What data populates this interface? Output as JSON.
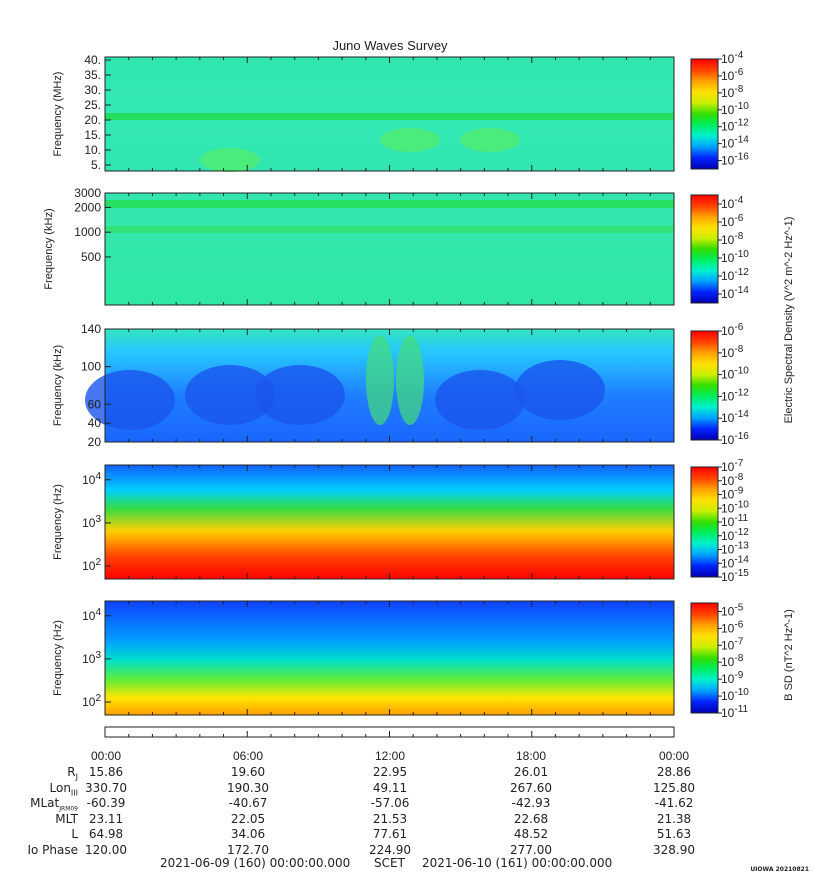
{
  "title": "Juno Waves Survey",
  "colors": {
    "spectrum": [
      "#0000b0",
      "#0022ff",
      "#00a0ff",
      "#00f0d0",
      "#00ee60",
      "#33dd00",
      "#ccee00",
      "#ffe000",
      "#ffa000",
      "#ff4000",
      "#ff0000"
    ]
  },
  "chart_data": [
    {
      "type": "heatmap",
      "ylabel": "Frequency (MHz)",
      "yticks": [
        "40.",
        "35.",
        "30.",
        "25.",
        "20.",
        "15.",
        "10.",
        "5."
      ],
      "ytick_values": [
        40,
        35,
        30,
        25,
        20,
        15,
        10,
        5
      ],
      "ylim": [
        3,
        41
      ],
      "scale": "linear",
      "colorbar": {
        "labels": [
          "10^-4",
          "10^-6",
          "10^-8",
          "10^-10",
          "10^-12",
          "10^-14",
          "10^-16"
        ],
        "exponents": [
          -4,
          -6,
          -8,
          -10,
          -12,
          -14,
          -16
        ],
        "range": [
          -17,
          -4
        ],
        "title": ""
      }
    },
    {
      "type": "heatmap",
      "ylabel": "Frequency (kHz)",
      "yticks": [
        "3000",
        "2000",
        "1000",
        "500"
      ],
      "ytick_values": [
        3000,
        2000,
        1000,
        500
      ],
      "ylim": [
        130,
        3000
      ],
      "scale": "log",
      "colorbar": {
        "labels": [
          "10^-4",
          "10^-6",
          "10^-8",
          "10^-10",
          "10^-12",
          "10^-14"
        ],
        "exponents": [
          -4,
          -6,
          -8,
          -10,
          -12,
          -14
        ],
        "range": [
          -15,
          -3
        ],
        "title": "Electric Spectral Density (V^2 m^-2 Hz^-1)"
      }
    },
    {
      "type": "heatmap",
      "ylabel": "Frequency (kHz)",
      "yticks": [
        "140",
        "100",
        "60",
        "40",
        "20"
      ],
      "ytick_values": [
        140,
        100,
        60,
        40,
        20
      ],
      "ylim": [
        20,
        140
      ],
      "scale": "linear",
      "colorbar": {
        "labels": [
          "10^-6",
          "10^-8",
          "10^-10",
          "10^-12",
          "10^-14",
          "10^-16"
        ],
        "exponents": [
          -6,
          -8,
          -10,
          -12,
          -14,
          -16
        ],
        "range": [
          -16,
          -6
        ],
        "title": ""
      }
    },
    {
      "type": "heatmap",
      "ylabel": "Frequency (Hz)",
      "yticks": [
        "10^4",
        "10^3",
        "10^2"
      ],
      "ytick_values": [
        10000,
        1000,
        100
      ],
      "ylim": [
        50,
        22000
      ],
      "scale": "log",
      "colorbar": {
        "labels": [
          "10^-7",
          "10^-8",
          "10^-9",
          "10^-10",
          "10^-11",
          "10^-12",
          "10^-13",
          "10^-14",
          "10^-15"
        ],
        "exponents": [
          -7,
          -8,
          -9,
          -10,
          -11,
          -12,
          -13,
          -14,
          -15
        ],
        "range": [
          -15,
          -7
        ],
        "title": ""
      }
    },
    {
      "type": "heatmap",
      "ylabel": "Frequency (Hz)",
      "yticks": [
        "10^4",
        "10^3",
        "10^2"
      ],
      "ytick_values": [
        10000,
        1000,
        100
      ],
      "ylim": [
        50,
        22000
      ],
      "scale": "log",
      "colorbar": {
        "labels": [
          "10^-5",
          "10^-6",
          "10^-7",
          "10^-8",
          "10^-9",
          "10^-10",
          "10^-11"
        ],
        "exponents": [
          -5,
          -6,
          -7,
          -8,
          -9,
          -10,
          -11
        ],
        "range": [
          -11,
          -4.5
        ],
        "title": "B SD (nT^2 Hz^-1)"
      }
    }
  ],
  "time_axis": {
    "ticks": [
      "00:00",
      "06:00",
      "12:00",
      "18:00",
      "00:00"
    ],
    "hour_values": [
      0,
      6,
      12,
      18,
      24
    ],
    "range_hours": [
      0,
      24
    ]
  },
  "ephemeris": [
    {
      "label": "R",
      "sub": "J",
      "values": [
        "15.86",
        "19.60",
        "22.95",
        "26.01",
        "28.86"
      ]
    },
    {
      "label": "Lon",
      "sub": "III",
      "values": [
        "330.70",
        "190.30",
        "49.11",
        "267.60",
        "125.80"
      ]
    },
    {
      "label": "MLat",
      "sub": "JRM09",
      "values": [
        "-60.39",
        "-40.67",
        "-57.06",
        "-42.93",
        "-41.62"
      ]
    },
    {
      "label": "MLT",
      "sub": "",
      "values": [
        "23.11",
        "22.05",
        "21.53",
        "22.68",
        "21.38"
      ]
    },
    {
      "label": "L",
      "sub": "",
      "values": [
        "64.98",
        "34.06",
        "77.61",
        "48.52",
        "51.63"
      ]
    },
    {
      "label": "Io Phase",
      "sub": "",
      "values": [
        "120.00",
        "172.70",
        "224.90",
        "277.00",
        "328.90"
      ]
    }
  ],
  "footer": {
    "start": "2021-06-09 (160) 00:00:00.000",
    "mid": "SCET",
    "end": "2021-06-10 (161) 00:00:00.000"
  },
  "stamp": "UIOWA 20210821"
}
